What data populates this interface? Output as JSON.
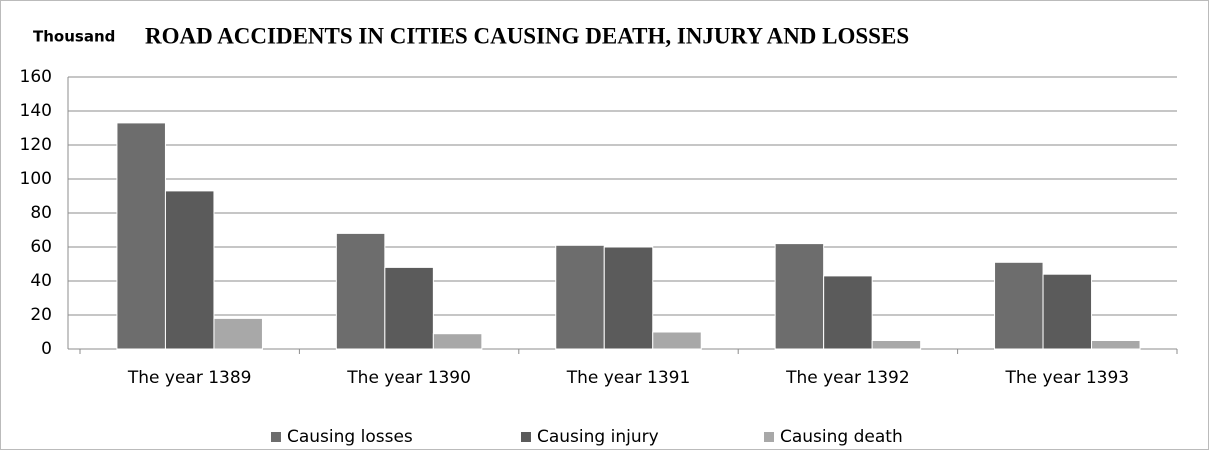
{
  "chart_data": {
    "type": "bar",
    "title": "ROAD  ACCIDENTS IN CITIES CAUSING DEATH, INJURY AND LOSSES",
    "y_label": "Thousand",
    "categories": [
      "The year 1389",
      "The year 1390",
      "The year 1391",
      "The year 1392",
      "The year 1393"
    ],
    "series": [
      {
        "name": "Causing losses",
        "color": "#6d6d6d",
        "values": [
          133,
          68,
          61,
          62,
          51
        ]
      },
      {
        "name": "Causing injury",
        "color": "#5b5b5b",
        "values": [
          93,
          48,
          60,
          43,
          44
        ]
      },
      {
        "name": "Causing death",
        "color": "#a8a8a8",
        "values": [
          18,
          9,
          10,
          5,
          5
        ]
      }
    ],
    "ylim": [
      0,
      160
    ],
    "yticks": [
      0,
      20,
      40,
      60,
      80,
      100,
      120,
      140,
      160
    ],
    "grid": true,
    "legend": "bottom"
  }
}
